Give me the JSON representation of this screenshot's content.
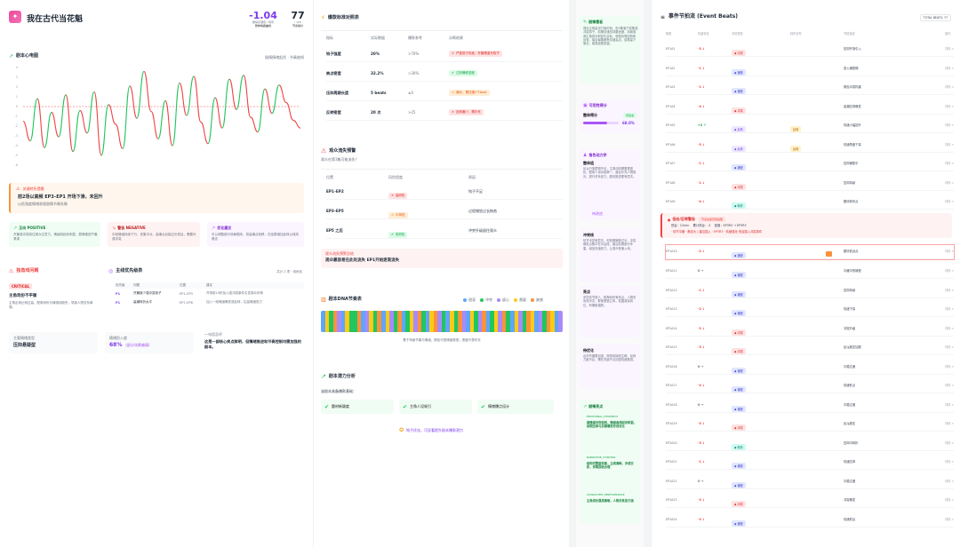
{
  "header": {
    "logo_glyph": "✦",
    "title": "我在古代当花魁",
    "stat1": {
      "value": "-1.04",
      "sub": "剧情高潮值 / 场景",
      "label": "整体情绪曲线",
      "color": "#7c3aed"
    },
    "stat2": {
      "value": "77",
      "sub": "/ 100",
      "label": "节奏得分"
    }
  },
  "chart": {
    "title": "剧本心电图",
    "meta": "剧情情绪起伏 · 节奏曲线",
    "y_ticks": [
      "4",
      "3",
      "2",
      "1",
      "0",
      "-1",
      "-2",
      "-3",
      "-4",
      "-5",
      "-6"
    ],
    "colors": {
      "up": "#22c55e",
      "down": "#ef4444",
      "zero": "#ef4444"
    }
  },
  "chart_data": {
    "type": "line",
    "ylim": [
      -6,
      4
    ],
    "y": [
      -1.5,
      -3.5,
      0.8,
      -4.2,
      -0.6,
      -3.1,
      1.2,
      -4.6,
      -0.4,
      -2.7,
      1.5,
      -5,
      0.2,
      -1.8,
      -4.3,
      2.1,
      -1.2,
      3.6,
      -0.5,
      -3.3,
      0.6,
      -4,
      2.4,
      -0.9,
      3.1,
      -1.6,
      -3.8,
      0.9,
      -2.2,
      2.8,
      -0.3,
      3.2,
      -1.1,
      -2.6,
      1.8,
      -0.7,
      2.2,
      0.4,
      -1.4,
      -2.2
    ]
  },
  "alert": {
    "label": "关键转折提醒",
    "title": "前2场以高频 EP3–EP1 开场下滑，未回升",
    "sub": "以低强度情绪收尾剧情节奏失衡"
  },
  "tips": [
    {
      "title": "正向 POSITIVE",
      "text": "开篇强冲突钩住观众注意力，情绪线起伏明显，剧情推进节奏紧凑"
    },
    {
      "title": "警告 NEGATIVE",
      "text": "中段情绪持续下行，多集平淡，高潮点后接过长低谷，需要补强冲突"
    },
    {
      "title": "优化建议",
      "text": "可以调整部分场景顺序，将高潮点前移，在结尾增加反转以保持悬念"
    }
  ],
  "chars": {
    "title": "独角戏问题",
    "badge": "CRITICAL",
    "item_title": "主角戏份不平衡",
    "item_text": "主角出场比例过高，配角戏份与情感线缺失，导致人物关系单薄。"
  },
  "table1": {
    "title": "主线优先级表",
    "meta": "共计 2 项 · 待优化",
    "headers": [
      "优先级",
      "问题",
      "位置",
      "建议"
    ],
    "rows": [
      {
        "p": "P1",
        "issue": "开篇缺少强冲突钩子",
        "pos": "EP1–EP3",
        "advice": "开场前10秒加入强冲突事件引发观众好奇"
      },
      {
        "p": "P1",
        "issue": "高潮转折太平",
        "pos": "EP7–EP8",
        "advice": "加入一段情绪爆发或反转，拉高情绪张力"
      }
    ]
  },
  "bottom": {
    "b1_label": "主要情绪类型",
    "b1_value": "压抑悬疑型",
    "b2_label": "情绪投入度",
    "b2_value": "68%",
    "b2_note": "(部分场景偏弱)",
    "b3_label": "一句话总评",
    "b3_value": "这是一部核心卖点鲜明，但情绪推进和节奏控制均需加强的剧本。"
  },
  "rhythm": {
    "title": "爆款标准对照表",
    "headers": [
      "指标",
      "实际数据",
      "爆款参考",
      "诊断结果"
    ],
    "rows": [
      {
        "name": "钩子强度",
        "actual": "20%",
        "ref": ">70%",
        "verdict": "严重低于标准，开篇需重写钩子",
        "kind": "bad"
      },
      {
        "name": "爽点密度",
        "actual": "32.2%",
        "ref": ">30%",
        "verdict": "达到爆款密度",
        "kind": "good"
      },
      {
        "name": "压抑周期长度",
        "actual": "5 beats",
        "ref": "≤4",
        "verdict": "偏长，需压缩1个beat",
        "kind": "warn"
      },
      {
        "name": "反转密度",
        "actual": "20 次",
        "ref": ">25",
        "verdict": "反转偏少，需补充",
        "kind": "bad"
      }
    ]
  },
  "risk": {
    "title": "观众流失预警",
    "sub": "观众在第3集可能流失？",
    "headers": [
      "位置",
      "风险程度",
      "原因"
    ],
    "rows": [
      {
        "pos": "EP1–EP2",
        "level": "高风险",
        "kind": "bad",
        "reason": "钩子不足"
      },
      {
        "pos": "EP3–EP5",
        "level": "中风险",
        "kind": "warn",
        "reason": "过程铺垫过长拖沓"
      },
      {
        "pos": "EP5 之后",
        "level": "低风险",
        "kind": "good",
        "reason": "冲突升级留住观众"
      }
    ],
    "footer_label": "观众流失预警总结",
    "footer_text": "观众最容易在此处流失 EP1开始逐渐流失"
  },
  "dna": {
    "title": "剧本DNA节奏表",
    "legend": [
      {
        "name": "甜宠",
        "color": "#60a5fa"
      },
      {
        "name": "冲突",
        "color": "#22c55e"
      },
      {
        "name": "虐心",
        "color": "#a78bfa"
      },
      {
        "name": "悬疑",
        "color": "#facc15"
      },
      {
        "name": "爽感",
        "color": "#fb923c"
      }
    ],
    "caption": "基于场景节奏与情绪，颜色代表情绪类型；宽度代表时长",
    "strip": [
      0,
      3,
      1,
      4,
      2,
      0,
      3,
      1,
      1,
      4,
      0,
      2,
      3,
      1,
      4,
      0,
      3,
      2,
      1,
      4,
      0,
      1,
      3,
      2,
      4,
      1,
      0,
      3,
      4,
      2,
      1,
      0,
      3,
      1,
      4,
      2,
      0,
      3,
      1,
      2,
      4,
      0,
      1,
      3,
      2,
      4,
      1,
      0,
      3,
      2,
      1,
      4,
      3,
      0,
      2,
      1,
      4,
      3,
      0,
      2
    ]
  },
  "potential": {
    "title": "剧本潜力分析",
    "sub": "该剧本具备爆款基础：",
    "items": [
      "题材新颖度",
      "主角人设吸引",
      "情绪爆点设计"
    ],
    "footer": "钩子优化，可显著提升剧本爆款潜力"
  },
  "mid": {
    "c1_title": "剧情看板",
    "c1_text": "强化主角高光打脸时刻，前3集落下密集强冲突钩子，前期情绪压抑要适度，持续强调主角成长和复仇目标。穿插伏笔回收和反转，保证每集都有情绪高点，结尾留下悬念，增强追更欲望。",
    "c2_title": "可用性得分",
    "c2_label": "整体得分",
    "c2_badge": "待改进",
    "c2_pct": 68,
    "c2_pct_text": "68.0%",
    "c3_title": "角色动力学",
    "c3_sub": "整体组",
    "c3_text": "反派行事逻辑不足，主角动机需要更强化。配角人设功能单一，建议补充人物弧光，提升关系张力，剧情推进更有层次。",
    "c3_hint": "待改进",
    "c4_title": "冲突线",
    "c4_text": "情节冲突有层次，但前期铺垫过长，冲突爆发点集中在中后段，建议前置部分矛盾，增加情绪张力，让观众快速入戏。",
    "c5_title": "亮点",
    "c5_text": "虐恋情节感人，配角戏份有亮点，人物关系线丰富，群像塑造立体，氛围渲染到位，有爆款潜质。",
    "c6_title": "待优化",
    "c6_text": "台词节奏需加强，转场衔接较生硬，反转力度不足，需在关键节点加强情绪推进。",
    "c7_title": "剧情亮点",
    "c7_items": [
      {
        "tag": "EMOTIONAL_DYNAMICS",
        "text": "高情绪冲突结构，情绪曲线起伏明显，前期压抑与后期爆发形成对比"
      },
      {
        "tag": "NARRATIVE_CONTROL",
        "text": "结构完整度较高，主线清晰，多线交织，伏笔回收合理"
      },
      {
        "tag": "CHARACTER_PERFORMANCE",
        "text": "主角成长弧线清晰，人物关系张力强"
      }
    ]
  },
  "events": {
    "title": "事件节拍流 (Event Beats)",
    "badge": "TOTAL BEATS: 77",
    "headers": [
      "集数",
      "情绪变化",
      "冲突类型",
      "",
      "转折信号",
      "",
      "节拍描述",
      "",
      "",
      "操作"
    ],
    "rows": [
      {
        "ep": "EP1A1",
        "delta": "-3 ↓",
        "dk": "down",
        "type": "冲突",
        "tk": "red",
        "desc": "压抑开场引入",
        "op": "详情 >"
      },
      {
        "ep": "EP1A2",
        "delta": "-1 ↓",
        "dk": "down",
        "type": "铺垫",
        "tk": "blue",
        "desc": "进入铺垫期",
        "op": "详情 >"
      },
      {
        "ep": "EP1A3",
        "delta": "-1 ↓",
        "dk": "down",
        "type": "铺垫",
        "tk": "blue",
        "desc": "角色冲突构建",
        "op": "详情 >"
      },
      {
        "ep": "EP1A4",
        "delta": "-4 ↓",
        "dk": "down",
        "type": "冲突",
        "tk": "red",
        "desc": "高潮压抑爆发",
        "op": "详情 >"
      },
      {
        "ep": "EP1A5",
        "delta": "+2 ↑",
        "dk": "up",
        "type": "反转",
        "tk": "purple",
        "sig": "反转",
        "desc": "情绪小幅回升",
        "op": "详情 >"
      },
      {
        "ep": "EP1A6",
        "delta": "-3 ↓",
        "dk": "down",
        "type": "反转",
        "tk": "purple",
        "sig": "反转",
        "desc": "情绪再度下探",
        "op": "详情 >"
      },
      {
        "ep": "EP1A7",
        "delta": "-1 ↓",
        "dk": "down",
        "type": "铺垫",
        "tk": "blue",
        "desc": "压抑铺垫中",
        "op": "详情 >"
      },
      {
        "ep": "EP1A8",
        "delta": "-1 ↓",
        "dk": "down",
        "type": "冲突",
        "tk": "red",
        "desc": "压抑持续",
        "op": "详情 >"
      },
      {
        "ep": "EP1A9",
        "delta": "-4 ↓",
        "dk": "down",
        "type": "转折",
        "tk": "teal",
        "desc": "剧情转折点",
        "op": "详情 >"
      }
    ],
    "alert": {
      "title": "低谷/反转警告",
      "badge": "节奏失衡风险提醒",
      "line1": "低谷：12min 　累计低谷：-5 　回落：EP3R3 → EP3R3",
      "line2": "· 情节平缓 · 概念大 | 建议插入 · EP3R3 · 情绪强化 低谷插入冲突事件",
      "ep": "EP1A10",
      "delta": "-2 ↓",
      "dk": "down",
      "type": "铺垫",
      "tk": "blue",
      "desc": "剧情低谷点",
      "op": "详情 >"
    },
    "rows2": [
      {
        "ep": "EP2A11",
        "delta": "0 →",
        "dk": "flat",
        "type": "铺垫",
        "tk": "blue",
        "desc": "平缓中的铺垫",
        "op": "详情 >"
      },
      {
        "ep": "EP2A12",
        "delta": "-1 ↓",
        "dk": "down",
        "type": "铺垫",
        "tk": "blue",
        "desc": "压抑持续",
        "op": "详情 >"
      },
      {
        "ep": "EP2A13",
        "delta": "-2 ↓",
        "dk": "down",
        "type": "铺垫",
        "tk": "blue",
        "desc": "情绪下探",
        "op": "详情 >"
      },
      {
        "ep": "EP2A14",
        "delta": "-3 ↓",
        "dk": "down",
        "type": "冲突",
        "tk": "red",
        "desc": "冲突升级",
        "op": "详情 >"
      },
      {
        "ep": "EP2A15",
        "delta": "-3 ↓",
        "dk": "down",
        "type": "冲突",
        "tk": "red",
        "desc": "反派施压加剧",
        "op": "详情 >"
      },
      {
        "ep": "EP2A16",
        "delta": "0 →",
        "dk": "flat",
        "type": "铺垫",
        "tk": "blue",
        "desc": "平稳过渡",
        "op": "详情 >"
      },
      {
        "ep": "EP2A17",
        "delta": "-4 ↓",
        "dk": "down",
        "type": "铺垫",
        "tk": "blue",
        "desc": "情绪低点",
        "op": "详情 >"
      },
      {
        "ep": "EP2A18",
        "delta": "0 →",
        "dk": "flat",
        "type": "铺垫",
        "tk": "blue",
        "desc": "平稳过渡",
        "op": "详情 >"
      },
      {
        "ep": "EP2A19",
        "delta": "-3 ↓",
        "dk": "down",
        "type": "冲突",
        "tk": "red",
        "desc": "反派施压",
        "op": "详情 >"
      },
      {
        "ep": "EP2A20",
        "delta": "-3 ↓",
        "dk": "down",
        "type": "转折",
        "tk": "teal",
        "desc": "压抑中转折",
        "op": "详情 >"
      },
      {
        "ep": "EP2A21",
        "delta": "-1 ↓",
        "dk": "down",
        "type": "铺垫",
        "tk": "blue",
        "desc": "情绪压抑",
        "op": "详情 >"
      },
      {
        "ep": "EP2A22",
        "delta": "0 →",
        "dk": "flat",
        "type": "铺垫",
        "tk": "blue",
        "desc": "平稳过渡",
        "op": "详情 >"
      },
      {
        "ep": "EP2A23",
        "delta": "-3 ↓",
        "dk": "down",
        "type": "冲突",
        "tk": "red",
        "desc": "冲突爆发",
        "op": "详情 >"
      },
      {
        "ep": "EP2A24",
        "delta": "-3 ↓",
        "dk": "down",
        "type": "铺垫",
        "tk": "blue",
        "desc": "情绪低谷",
        "op": "详情 >"
      }
    ]
  }
}
